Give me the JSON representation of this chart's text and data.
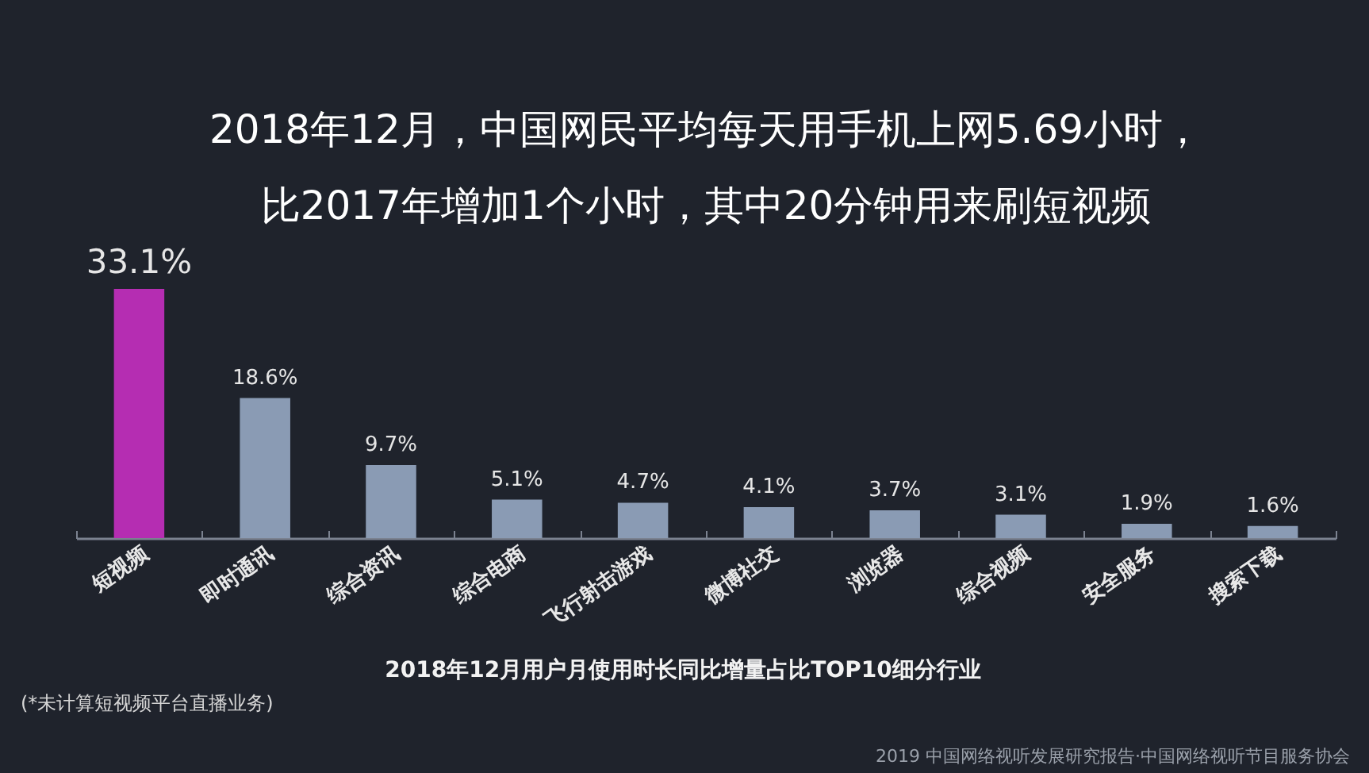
{
  "chart_data": {
    "type": "bar",
    "title": "2018年12月，中国网民平均每天用手机上网5.69小时，比2017年增加1个小时，其中20分钟用来刷短视频",
    "xlabel": "2018年12月用户月使用时长同比增量占比TOP10细分行业",
    "categories": [
      "短视频",
      "即时通讯",
      "综合资讯",
      "综合电商",
      "飞行射击游戏",
      "微博社交",
      "浏览器",
      "综合视频",
      "安全服务",
      "搜索下载"
    ],
    "values": [
      33.1,
      18.6,
      9.7,
      5.1,
      4.7,
      4.1,
      3.7,
      3.1,
      1.9,
      1.6
    ],
    "value_labels": [
      "33.1%",
      "18.6%",
      "9.7%",
      "5.1%",
      "4.7%",
      "4.1%",
      "3.7%",
      "3.1%",
      "1.9%",
      "1.6%"
    ],
    "colors": [
      "#b52db2",
      "#8a9bb4",
      "#8a9bb4",
      "#8a9bb4",
      "#8a9bb4",
      "#8a9bb4",
      "#8a9bb4",
      "#8a9bb4",
      "#8a9bb4",
      "#8a9bb4"
    ],
    "annotations": [
      "(*未计算短视频平台直播业务)",
      "2019 中国网络视听发展研究报告·中国网络视听节目服务协会"
    ]
  }
}
